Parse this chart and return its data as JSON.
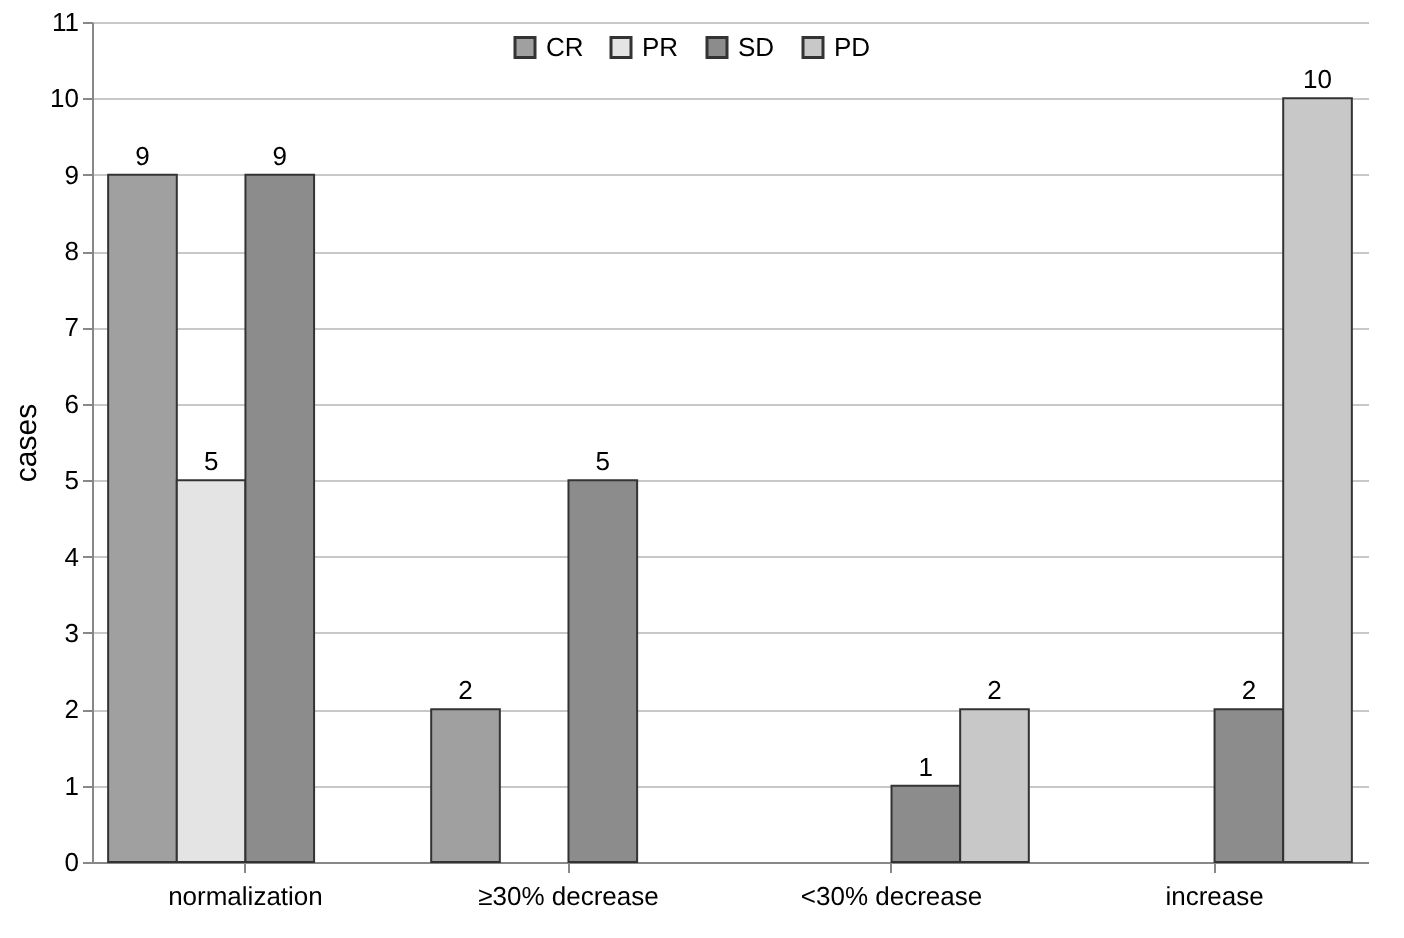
{
  "chart_data": {
    "type": "bar",
    "ylabel": "cases",
    "categories": [
      "normalization",
      "≥30% decrease",
      "<30% decrease",
      "increase"
    ],
    "series": [
      {
        "name": "CR",
        "color": "#a0a0a0",
        "values": [
          9,
          2,
          null,
          null
        ]
      },
      {
        "name": "PR",
        "color": "#e4e4e4",
        "values": [
          5,
          null,
          null,
          null
        ]
      },
      {
        "name": "SD",
        "color": "#8c8c8c",
        "values": [
          9,
          5,
          1,
          2
        ]
      },
      {
        "name": "PD",
        "color": "#c8c8c8",
        "values": [
          null,
          null,
          2,
          10
        ]
      }
    ],
    "ylim": [
      0,
      11
    ],
    "yticks": [
      0,
      1,
      2,
      3,
      4,
      5,
      6,
      7,
      8,
      9,
      10,
      11
    ],
    "grid": "y",
    "legend": "top",
    "data_labels": true
  }
}
